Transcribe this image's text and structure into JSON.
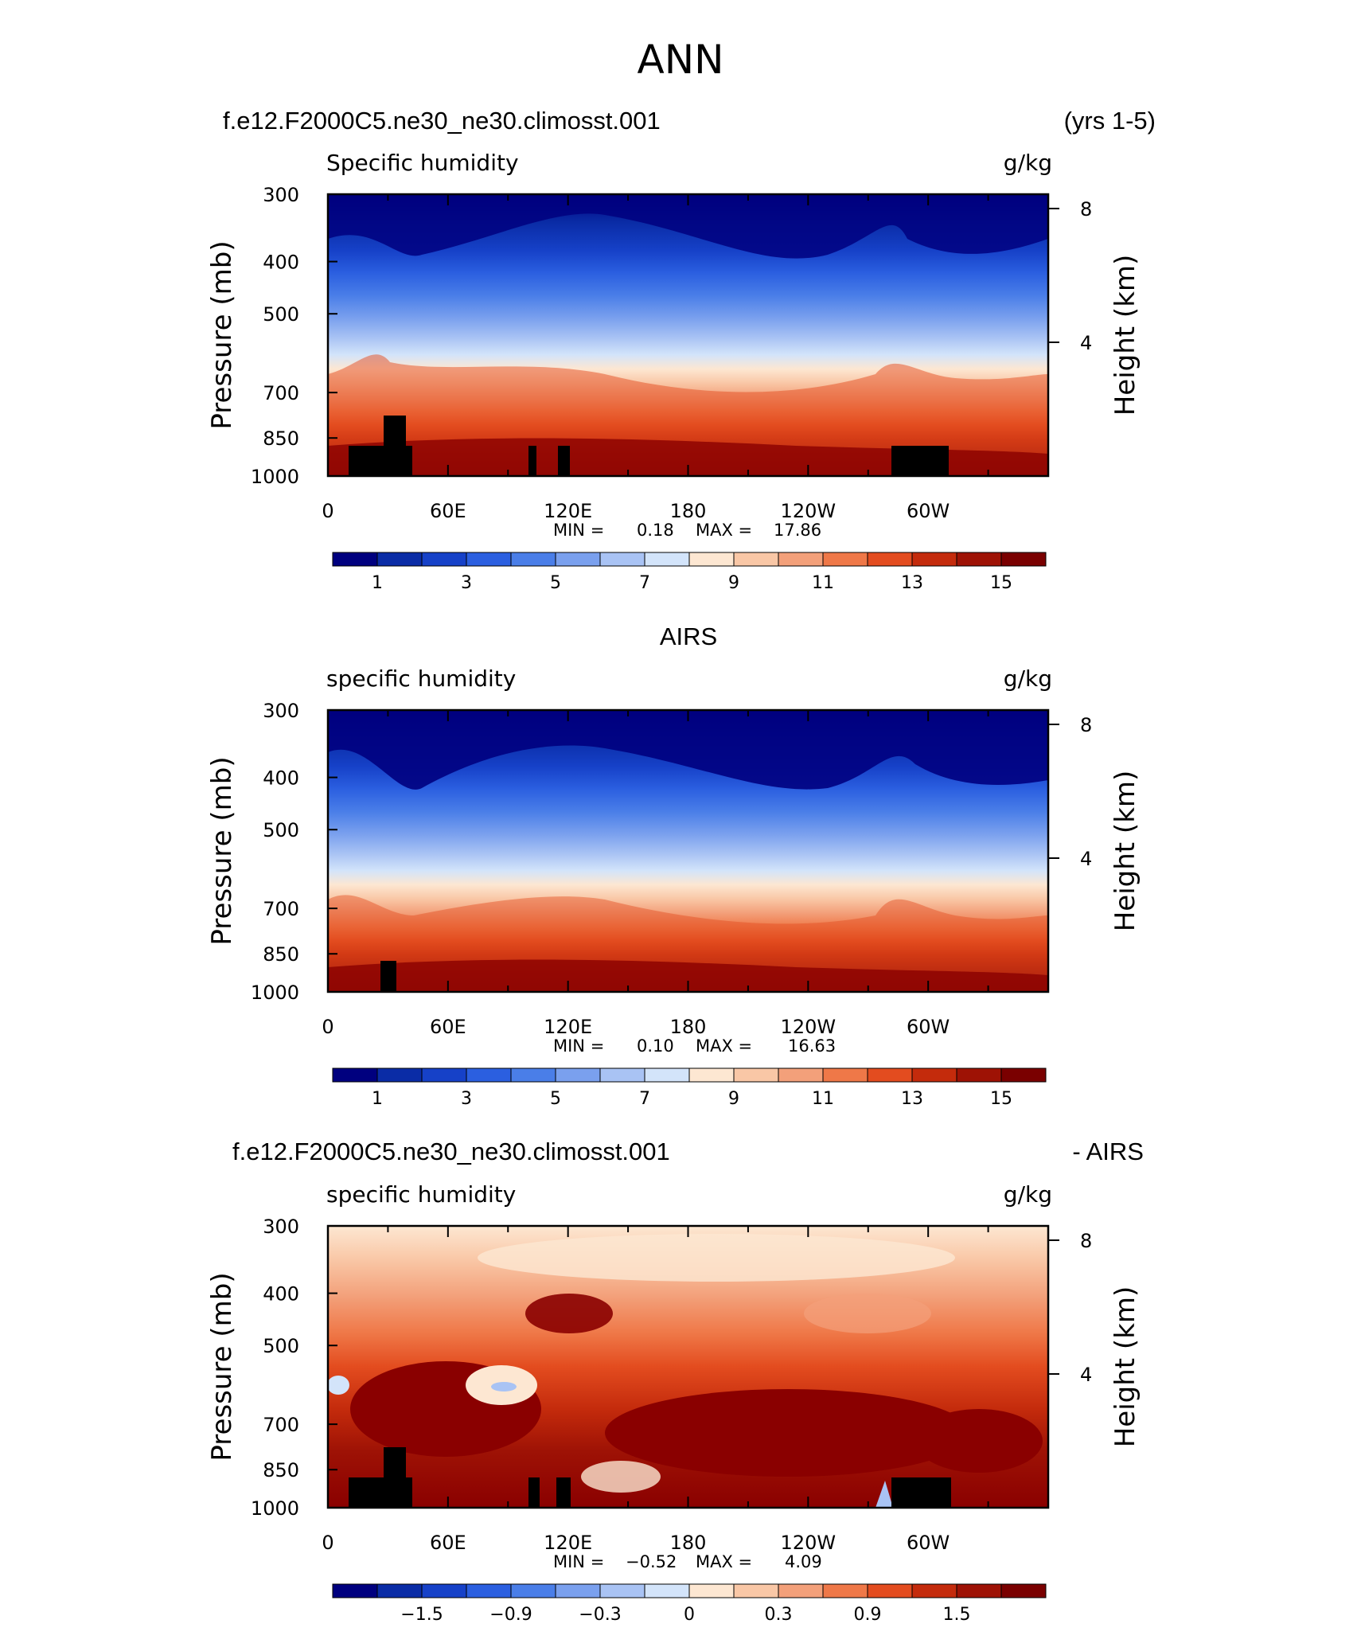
{
  "figure_title": "ANN",
  "chart_data": [
    {
      "type": "heatmap",
      "title_left": "f.e12.F2000C5.ne30_ne30.climosst.001",
      "title_right": "(yrs 1-5)",
      "subtitle_left": "Specific humidity",
      "subtitle_right": "g/kg",
      "ylabel": "Pressure (mb)",
      "ylabel_right": "Height (km)",
      "x_ticklabels": [
        "0",
        "60E",
        "120E",
        "180",
        "120W",
        "60W"
      ],
      "y_ticklabels": [
        "300",
        "400",
        "500",
        "700",
        "850",
        "1000"
      ],
      "y_right_ticklabels": [
        "8",
        "4"
      ],
      "stats_min_label": "MIN =",
      "stats_min": "0.18",
      "stats_max_label": "MAX =",
      "stats_max": "17.86",
      "colorbar_labels": [
        "1",
        "3",
        "5",
        "7",
        "9",
        "11",
        "13",
        "15"
      ],
      "ylim": [
        1000,
        300
      ],
      "yscale": "log"
    },
    {
      "type": "heatmap",
      "title_center": "AIRS",
      "subtitle_left": "specific humidity",
      "subtitle_right": "g/kg",
      "ylabel": "Pressure (mb)",
      "ylabel_right": "Height (km)",
      "x_ticklabels": [
        "0",
        "60E",
        "120E",
        "180",
        "120W",
        "60W"
      ],
      "y_ticklabels": [
        "300",
        "400",
        "500",
        "700",
        "850",
        "1000"
      ],
      "y_right_ticklabels": [
        "8",
        "4"
      ],
      "stats_min_label": "MIN =",
      "stats_min": "0.10",
      "stats_max_label": "MAX =",
      "stats_max": "16.63",
      "colorbar_labels": [
        "1",
        "3",
        "5",
        "7",
        "9",
        "11",
        "13",
        "15"
      ],
      "ylim": [
        1000,
        300
      ],
      "yscale": "log"
    },
    {
      "type": "heatmap",
      "title_left": "f.e12.F2000C5.ne30_ne30.climosst.001",
      "title_right": "- AIRS",
      "subtitle_left": "specific humidity",
      "subtitle_right": "g/kg",
      "ylabel": "Pressure (mb)",
      "ylabel_right": "Height (km)",
      "x_ticklabels": [
        "0",
        "60E",
        "120E",
        "180",
        "120W",
        "60W"
      ],
      "y_ticklabels": [
        "300",
        "400",
        "500",
        "700",
        "850",
        "1000"
      ],
      "y_right_ticklabels": [
        "8",
        "4"
      ],
      "stats_min_label": "MIN =",
      "stats_min": "−0.52",
      "stats_max_label": "MAX =",
      "stats_max": "4.09",
      "colorbar_labels": [
        "−1.5",
        "−0.9",
        "−0.3",
        "0",
        "0.3",
        "0.9",
        "1.5"
      ],
      "ylim": [
        1000,
        300
      ],
      "yscale": "log"
    }
  ],
  "colors": {
    "colormap": [
      "#00007f",
      "#0a2ca6",
      "#1641c8",
      "#2b5fe0",
      "#4a7ee8",
      "#7aa0ee",
      "#a9c3f4",
      "#d3e4fa",
      "#fde7d2",
      "#f9c7a6",
      "#f3a07a",
      "#ef7848",
      "#e34c1f",
      "#c42b0c",
      "#9e1205",
      "#7a0000"
    ],
    "frame": "#000000",
    "topography": "#000000"
  }
}
